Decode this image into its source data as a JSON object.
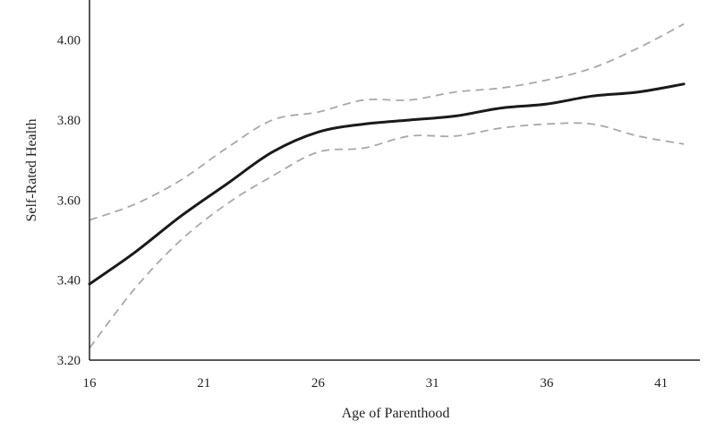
{
  "chart_data": {
    "type": "line",
    "title": "",
    "xlabel": "Age of Parenthood",
    "ylabel": "Self-Rated Health",
    "xlim": [
      16,
      42.7
    ],
    "ylim": [
      3.2,
      4.1
    ],
    "xticks": [
      16,
      21,
      26,
      31,
      36,
      41
    ],
    "yticks": [
      3.2,
      3.4,
      3.6,
      3.8,
      4.0
    ],
    "xtick_labels": [
      "16",
      "21",
      "26",
      "31",
      "36",
      "41"
    ],
    "ytick_labels": [
      "3.20",
      "3.40",
      "3.60",
      "3.80",
      "4.00"
    ],
    "grid": false,
    "legend": "none",
    "series": [
      {
        "role": "estimate",
        "style": "solid",
        "color": "#1a1a1a",
        "x": [
          16,
          18,
          20,
          22,
          24,
          26,
          28,
          30,
          32,
          34,
          36,
          38,
          40,
          42
        ],
        "y": [
          3.39,
          3.47,
          3.56,
          3.64,
          3.72,
          3.77,
          3.79,
          3.8,
          3.81,
          3.83,
          3.84,
          3.86,
          3.87,
          3.89
        ]
      },
      {
        "role": "upper-ci",
        "style": "dashed",
        "color": "#a8a8a8",
        "x": [
          16,
          18,
          20,
          22,
          24,
          26,
          28,
          30,
          32,
          34,
          36,
          38,
          40,
          42
        ],
        "y": [
          3.55,
          3.59,
          3.65,
          3.73,
          3.8,
          3.82,
          3.85,
          3.85,
          3.87,
          3.88,
          3.9,
          3.93,
          3.98,
          4.04
        ]
      },
      {
        "role": "lower-ci",
        "style": "dashed",
        "color": "#a8a8a8",
        "x": [
          16,
          18,
          20,
          22,
          24,
          26,
          28,
          30,
          32,
          34,
          36,
          38,
          40,
          42
        ],
        "y": [
          3.23,
          3.38,
          3.5,
          3.59,
          3.66,
          3.72,
          3.73,
          3.76,
          3.76,
          3.78,
          3.79,
          3.79,
          3.76,
          3.74
        ]
      }
    ]
  }
}
